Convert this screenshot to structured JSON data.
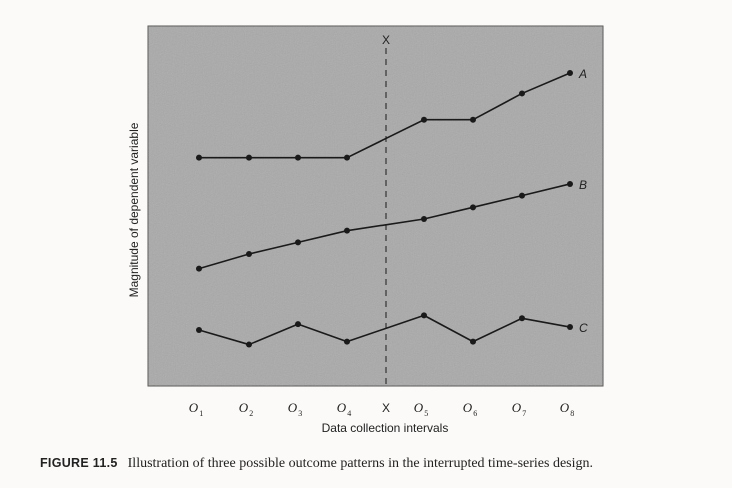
{
  "chart_data": {
    "type": "line",
    "categories": [
      "O1",
      "O2",
      "O3",
      "O4",
      "O5",
      "O6",
      "O7",
      "O8"
    ],
    "ticks": [
      {
        "base": "O",
        "sub": "1"
      },
      {
        "base": "O",
        "sub": "2"
      },
      {
        "base": "O",
        "sub": "3"
      },
      {
        "base": "O",
        "sub": "4"
      },
      {
        "base": "O",
        "sub": "5"
      },
      {
        "base": "O",
        "sub": "6"
      },
      {
        "base": "O",
        "sub": "7"
      },
      {
        "base": "O",
        "sub": "8"
      }
    ],
    "intervention": {
      "label": "X",
      "after_index": 3
    },
    "xlabel": "Data collection intervals",
    "ylabel": "Magnitude of dependent variable",
    "ylim": [
      0,
      100
    ],
    "grid": false,
    "series": [
      {
        "name": "A",
        "values": [
          71,
          71,
          71,
          71,
          84,
          84,
          93,
          100
        ]
      },
      {
        "name": "B",
        "values": [
          33,
          38,
          42,
          46,
          50,
          54,
          58,
          62
        ]
      },
      {
        "name": "C",
        "values": [
          12,
          7,
          14,
          8,
          17,
          8,
          16,
          13
        ]
      }
    ],
    "colors": {
      "plot_background": "#a9a9a9",
      "line": "#1a1a1a",
      "dashed_line": "#1a1a1a"
    }
  },
  "caption": {
    "figure_number": "FIGURE 11.5",
    "text": "Illustration of three possible outcome patterns in the interrupted time-series design."
  }
}
